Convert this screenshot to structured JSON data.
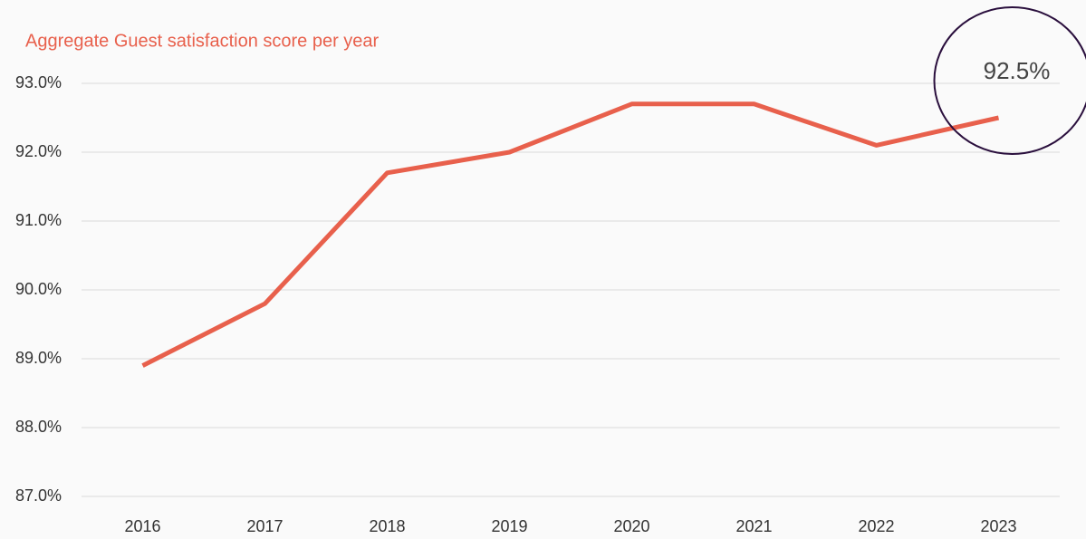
{
  "chart_data": {
    "type": "line",
    "title": "Aggregate Guest satisfaction score per year",
    "categories": [
      "2016",
      "2017",
      "2018",
      "2019",
      "2020",
      "2021",
      "2022",
      "2023"
    ],
    "series": [
      {
        "name": "Aggregate Guest satisfaction score",
        "color": "#e8604c",
        "values": [
          88.9,
          89.8,
          91.7,
          92.0,
          92.7,
          92.7,
          92.1,
          92.5
        ]
      }
    ],
    "ylim": [
      87,
      93
    ],
    "yticks": [
      {
        "value": 87,
        "label": "87.0%"
      },
      {
        "value": 88,
        "label": "88.0%"
      },
      {
        "value": 89,
        "label": "89.0%"
      },
      {
        "value": 90,
        "label": "90.0%"
      },
      {
        "value": 91,
        "label": "91.0%"
      },
      {
        "value": 92,
        "label": "92.0%"
      },
      {
        "value": 93,
        "label": "93.0%"
      }
    ],
    "grid": true,
    "annotation": {
      "text": "92.5%",
      "color": "#2a0f3d"
    }
  }
}
